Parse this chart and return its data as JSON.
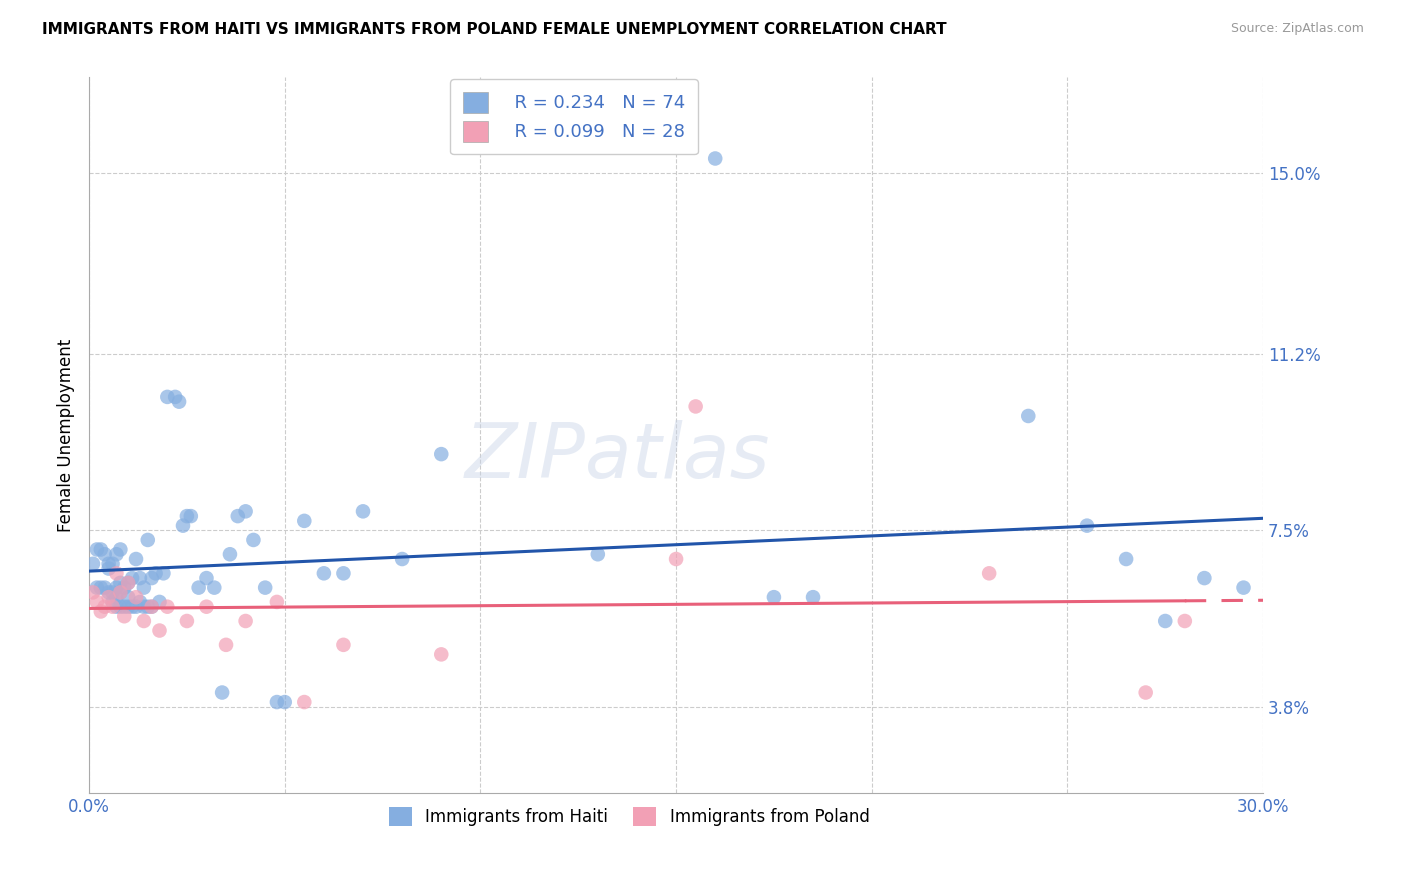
{
  "title": "IMMIGRANTS FROM HAITI VS IMMIGRANTS FROM POLAND FEMALE UNEMPLOYMENT CORRELATION CHART",
  "source": "Source: ZipAtlas.com",
  "ylabel": "Female Unemployment",
  "xlim": [
    0.0,
    0.3
  ],
  "ylim": [
    0.02,
    0.17
  ],
  "yticks": [
    0.038,
    0.075,
    0.112,
    0.15
  ],
  "ytick_labels": [
    "3.8%",
    "7.5%",
    "11.2%",
    "15.0%"
  ],
  "xticks": [
    0.0,
    0.05,
    0.1,
    0.15,
    0.2,
    0.25,
    0.3
  ],
  "xtick_labels": [
    "0.0%",
    "",
    "",
    "",
    "",
    "",
    "30.0%"
  ],
  "haiti_color": "#85aee0",
  "poland_color": "#f2a0b5",
  "haiti_R": 0.234,
  "haiti_N": 74,
  "poland_R": 0.099,
  "poland_N": 28,
  "haiti_line_color": "#2255aa",
  "poland_line_color": "#e8607a",
  "label_color": "#4472c4",
  "watermark": "ZIPatlas",
  "background_color": "#ffffff",
  "haiti_x": [
    0.001,
    0.002,
    0.002,
    0.003,
    0.003,
    0.004,
    0.004,
    0.005,
    0.005,
    0.005,
    0.006,
    0.006,
    0.006,
    0.007,
    0.007,
    0.007,
    0.007,
    0.008,
    0.008,
    0.008,
    0.008,
    0.009,
    0.009,
    0.01,
    0.01,
    0.01,
    0.011,
    0.011,
    0.012,
    0.012,
    0.013,
    0.013,
    0.014,
    0.014,
    0.015,
    0.015,
    0.016,
    0.016,
    0.017,
    0.018,
    0.019,
    0.02,
    0.022,
    0.023,
    0.024,
    0.025,
    0.026,
    0.028,
    0.03,
    0.032,
    0.034,
    0.036,
    0.038,
    0.04,
    0.042,
    0.045,
    0.048,
    0.05,
    0.055,
    0.06,
    0.065,
    0.07,
    0.08,
    0.09,
    0.13,
    0.16,
    0.175,
    0.185,
    0.24,
    0.255,
    0.265,
    0.275,
    0.285,
    0.295
  ],
  "haiti_y": [
    0.068,
    0.063,
    0.071,
    0.063,
    0.071,
    0.063,
    0.07,
    0.062,
    0.067,
    0.068,
    0.06,
    0.062,
    0.068,
    0.059,
    0.061,
    0.063,
    0.07,
    0.059,
    0.062,
    0.064,
    0.071,
    0.059,
    0.063,
    0.059,
    0.061,
    0.064,
    0.059,
    0.065,
    0.059,
    0.069,
    0.06,
    0.065,
    0.059,
    0.063,
    0.059,
    0.073,
    0.059,
    0.065,
    0.066,
    0.06,
    0.066,
    0.103,
    0.103,
    0.102,
    0.076,
    0.078,
    0.078,
    0.063,
    0.065,
    0.063,
    0.041,
    0.07,
    0.078,
    0.079,
    0.073,
    0.063,
    0.039,
    0.039,
    0.077,
    0.066,
    0.066,
    0.079,
    0.069,
    0.091,
    0.07,
    0.153,
    0.061,
    0.061,
    0.099,
    0.076,
    0.069,
    0.056,
    0.065,
    0.063
  ],
  "poland_x": [
    0.001,
    0.002,
    0.003,
    0.004,
    0.005,
    0.006,
    0.007,
    0.008,
    0.009,
    0.01,
    0.012,
    0.014,
    0.016,
    0.018,
    0.02,
    0.025,
    0.03,
    0.035,
    0.04,
    0.048,
    0.055,
    0.065,
    0.09,
    0.15,
    0.155,
    0.23,
    0.27,
    0.28
  ],
  "poland_y": [
    0.062,
    0.06,
    0.058,
    0.059,
    0.061,
    0.059,
    0.066,
    0.062,
    0.057,
    0.064,
    0.061,
    0.056,
    0.059,
    0.054,
    0.059,
    0.056,
    0.059,
    0.051,
    0.056,
    0.06,
    0.039,
    0.051,
    0.049,
    0.069,
    0.101,
    0.066,
    0.041,
    0.056
  ]
}
